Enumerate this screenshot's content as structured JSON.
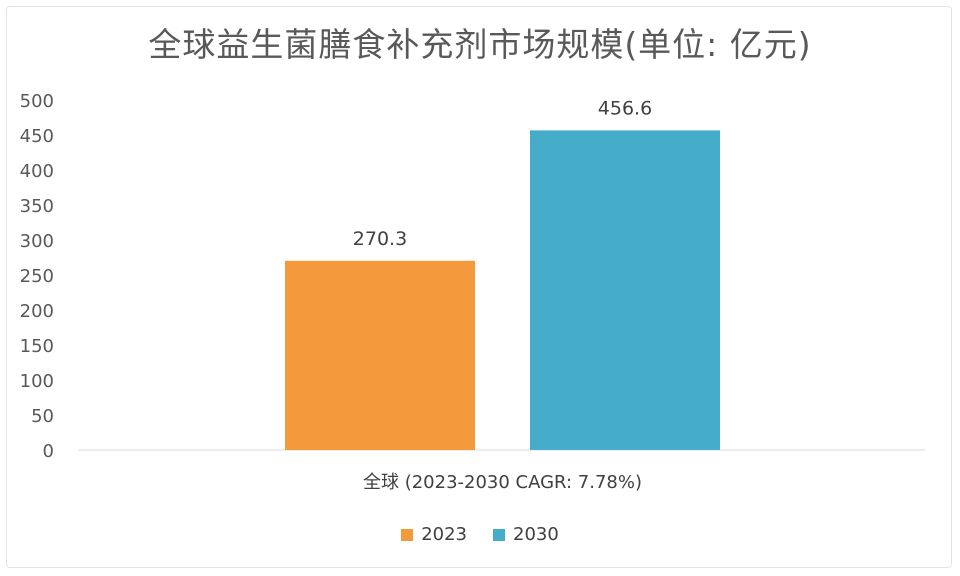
{
  "chart_data": {
    "type": "bar",
    "title": "全球益生菌膳食补充剂市场规模(单位: 亿元)",
    "categories": [
      "全球 (2023-2030 CAGR: 7.78%)"
    ],
    "series": [
      {
        "name": "2023",
        "values": [
          270.3
        ],
        "color": "#F39A3C",
        "label": "270.3"
      },
      {
        "name": "2030",
        "values": [
          456.6
        ],
        "color": "#45ACC9",
        "label": "456.6"
      }
    ],
    "ylim": [
      0,
      500
    ],
    "yticks": [
      "0",
      "50",
      "100",
      "150",
      "200",
      "250",
      "300",
      "350",
      "400",
      "450",
      "500"
    ],
    "grid": false,
    "legend_position": "bottom"
  }
}
